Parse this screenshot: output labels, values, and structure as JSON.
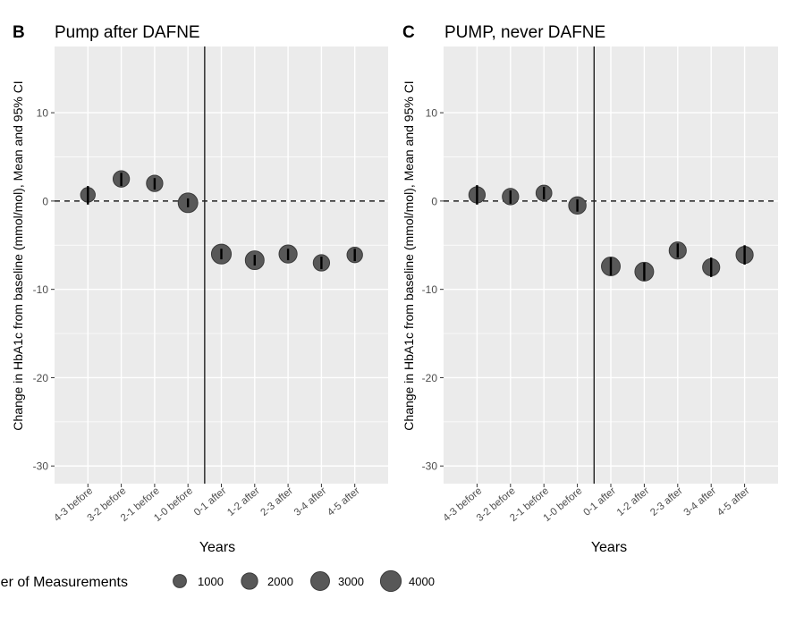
{
  "chart_data": [
    {
      "type": "scatter",
      "panel_letter": "B",
      "title": "Pump after DAFNE",
      "xlabel": "Years",
      "ylabel": "Change in HbA1c from baseline (mmol/mol), Mean and 95% CI",
      "categories": [
        "4-3 before",
        "3-2 before",
        "2-1 before",
        "1-0 before",
        "0-1 after",
        "1-2 after",
        "2-3 after",
        "3-4 after",
        "4-5 after"
      ],
      "values": [
        0.7,
        2.5,
        2.0,
        -0.2,
        -6.0,
        -6.7,
        -6.0,
        -7.0,
        -6.1
      ],
      "ci_low": [
        -0.4,
        1.7,
        1.3,
        -0.7,
        -6.6,
        -7.3,
        -6.7,
        -7.7,
        -6.8
      ],
      "ci_high": [
        1.7,
        3.2,
        2.6,
        0.3,
        -5.4,
        -6.1,
        -5.4,
        -6.3,
        -5.4
      ],
      "n_measurements": [
        1400,
        2000,
        2000,
        3400,
        3500,
        3000,
        2700,
        2000,
        1700
      ],
      "yticks": [
        10,
        0,
        -10,
        -20,
        -30
      ],
      "ylim": [
        -32,
        17.5
      ],
      "reference_line_y": 0,
      "divider_after_category": "1-0 before",
      "grid": true
    },
    {
      "type": "scatter",
      "panel_letter": "C",
      "title": "PUMP, never DAFNE",
      "xlabel": "Years",
      "ylabel": "Change in HbA1c from baseline (mmol/mol), Mean and 95% CI",
      "categories": [
        "4-3 before",
        "3-2 before",
        "2-1 before",
        "1-0 before",
        "0-1 after",
        "1-2 after",
        "2-3 after",
        "3-4 after",
        "4-5 after"
      ],
      "values": [
        0.7,
        0.5,
        0.9,
        -0.5,
        -7.4,
        -8.0,
        -5.6,
        -7.5,
        -6.1
      ],
      "ci_low": [
        -0.4,
        -0.3,
        0.2,
        -1.2,
        -8.4,
        -9.0,
        -6.4,
        -8.6,
        -7.2
      ],
      "ci_high": [
        1.8,
        1.2,
        1.6,
        0.2,
        -6.4,
        -7.0,
        -4.8,
        -6.4,
        -5.0
      ],
      "n_measurements": [
        2000,
        2000,
        1800,
        2400,
        3000,
        3000,
        2300,
        2300,
        2300
      ],
      "yticks": [
        10,
        0,
        -10,
        -20,
        -30
      ],
      "ylim": [
        -32,
        17.5
      ],
      "reference_line_y": 0,
      "divider_after_category": "1-0 before",
      "grid": true
    }
  ],
  "legend": {
    "title": "Number of Measurements",
    "placement": "bottom",
    "entries": [
      {
        "label": "1000",
        "value": 1000
      },
      {
        "label": "2000",
        "value": 2000
      },
      {
        "label": "3000",
        "value": 3000
      },
      {
        "label": "4000",
        "value": 4000
      }
    ]
  },
  "colors": {
    "panel_bg": "#ebebeb",
    "grid": "#ffffff",
    "point_fill": "#585858",
    "point_stroke": "#3a3a3a",
    "errorbar": "#000000",
    "text": "#000000",
    "tick_text": "#4d4d4d"
  }
}
